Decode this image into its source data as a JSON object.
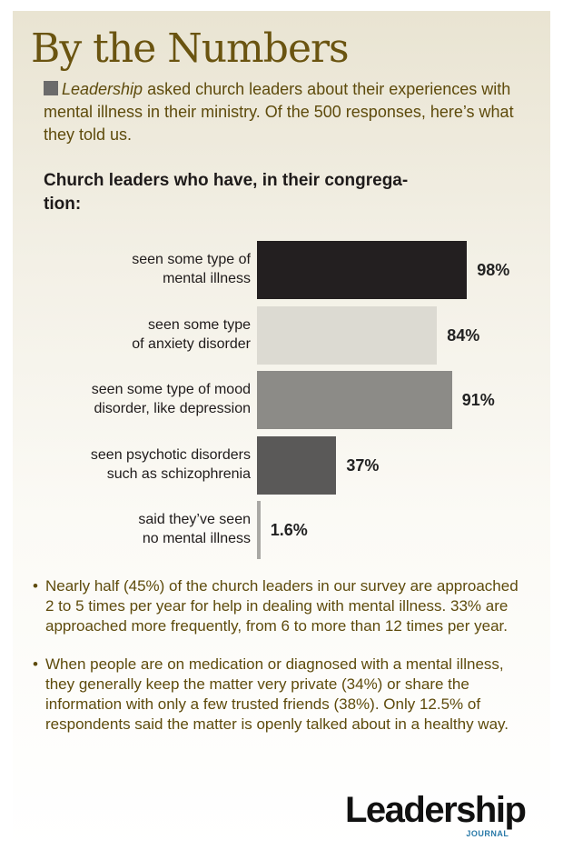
{
  "title": "By the Numbers",
  "intro": {
    "italic": "Leadership",
    "text": " asked church leaders about their experiences with mental illness in their ministry. Of the 500 responses, here’s what they told us."
  },
  "chart_data": {
    "type": "bar",
    "title": "Church leaders who have, in their congrega-tion:",
    "categories": [
      "seen some type of mental illness",
      "seen some type of anxiety disorder",
      "seen some type of mood disorder, like depression",
      "seen psychotic disorders such as schizophrenia",
      "said they’ve seen no mental illness"
    ],
    "label_lines": [
      [
        "seen some type of",
        "mental illness"
      ],
      [
        "seen some type",
        "of anxiety disorder"
      ],
      [
        "seen some type of mood",
        "disorder, like depression"
      ],
      [
        "seen psychotic disorders",
        "such as schizophrenia"
      ],
      [
        "said they’ve seen",
        "no mental illness"
      ]
    ],
    "values": [
      98,
      84,
      91,
      37,
      1.6
    ],
    "value_labels": [
      "98%",
      "84%",
      "91%",
      "37%",
      "1.6%"
    ],
    "colors": [
      "#231f20",
      "#dcdad2",
      "#8c8b87",
      "#5a5958",
      "#a9a8a4"
    ],
    "xlim": [
      0,
      100
    ]
  },
  "subhead_lines": [
    "Church leaders who have, in their congrega-",
    "tion:"
  ],
  "bullets": [
    "Nearly half (45%) of the church leaders in our survey are approached 2 to 5 times per year for help in dealing with mental illness. 33% are approached more frequently, from 6 to more than 12 times per year.",
    "When people are on medication or diagnosed with a mental illness, they generally keep the matter very private (34%) or share the information with only a few trusted friends (38%). Only 12.5% of respondents said the matter is openly talked about in a healthy way."
  ],
  "logo": {
    "main": "Leadership",
    "sub": "JOURNAL"
  }
}
